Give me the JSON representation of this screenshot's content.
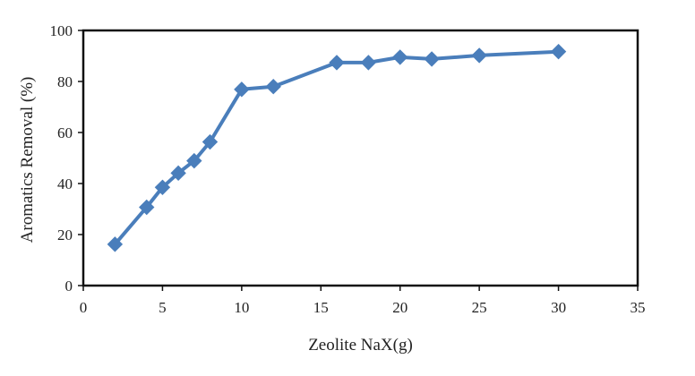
{
  "chart_data": {
    "type": "line",
    "title": "",
    "xlabel": "Zeolite NaX(g)",
    "ylabel": "Aromatics Removal (%)",
    "xlim": [
      0,
      35
    ],
    "ylim": [
      0,
      100
    ],
    "xticks": [
      0,
      5,
      10,
      15,
      20,
      25,
      30,
      35
    ],
    "yticks": [
      0,
      20,
      40,
      60,
      80,
      100
    ],
    "x_tick_labels": [
      "0",
      "5",
      "10",
      "15",
      "20",
      "25",
      "30",
      "35"
    ],
    "y_tick_labels": [
      "0",
      "20",
      "40",
      "60",
      "80",
      "100"
    ],
    "grid": false,
    "legend": "none",
    "series": [
      {
        "marker": "diamond",
        "color": "#4A7EBB",
        "x": [
          2,
          4,
          5,
          6,
          7,
          8,
          10,
          12,
          16,
          18,
          20,
          22,
          25,
          30
        ],
        "y": [
          16.2,
          30.7,
          38.5,
          44.1,
          48.9,
          56.3,
          76.9,
          78.0,
          87.4,
          87.4,
          89.5,
          88.8,
          90.2,
          91.7
        ]
      }
    ]
  }
}
